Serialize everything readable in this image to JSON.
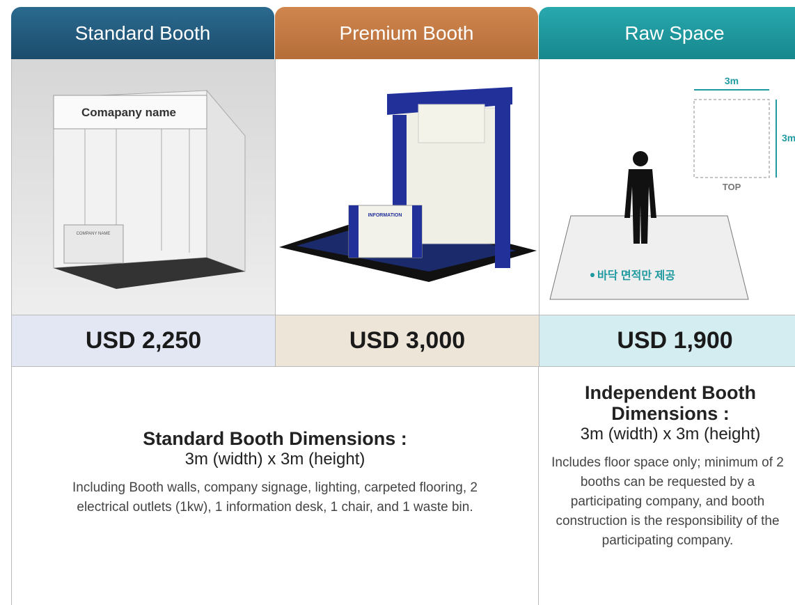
{
  "columns": [
    {
      "header": "Standard Booth",
      "price": "USD 2,250"
    },
    {
      "header": "Premium Booth",
      "price": "USD 3,000"
    },
    {
      "header": "Raw Space",
      "price": "USD 1,900"
    }
  ],
  "images": {
    "standard": {
      "sign": "Comapany name",
      "desk": "COMPANY NAME"
    },
    "premium": {
      "desk": "INFORMATION"
    },
    "raw": {
      "width": "3m",
      "height": "3m",
      "view": "TOP",
      "note": "• 바닥 면적만 제공"
    }
  },
  "descriptions": [
    {
      "title": "Standard Booth Dimensions :",
      "size": "3m (width) x 3m (height)",
      "details": "Including Booth walls, company signage, lighting, carpeted flooring, 2 electrical outlets (1kw), 1 information desk, 1 chair, and 1 waste bin."
    },
    {
      "title": "Independent Booth Dimensions :",
      "size": "3m (width) x 3m (height)",
      "details": "Includes floor space only; minimum of 2 booths can be requested by a participating company, and booth construction is the responsibility of the participating company."
    }
  ]
}
